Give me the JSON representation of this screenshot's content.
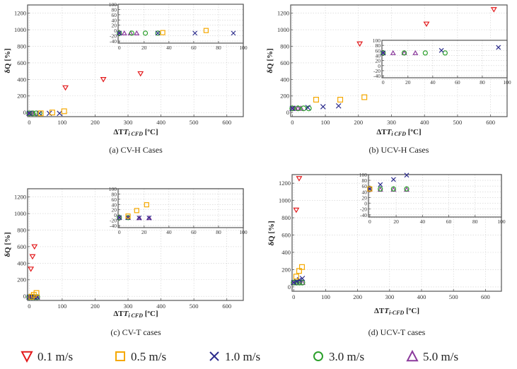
{
  "legend": [
    {
      "key": "v01",
      "label": "0.1 m/s",
      "marker": "triangle-down",
      "color": "#e31a1c"
    },
    {
      "key": "v05",
      "label": "0.5 m/s",
      "marker": "square",
      "color": "#f5a800"
    },
    {
      "key": "v10",
      "label": "1.0 m/s",
      "marker": "x",
      "color": "#2c2c8c"
    },
    {
      "key": "v30",
      "label": "3.0 m/s",
      "marker": "circle",
      "color": "#2ca02c"
    },
    {
      "key": "v50",
      "label": "5.0 m/s",
      "marker": "triangle-up",
      "color": "#8b3a9c"
    }
  ],
  "chart_data": [
    {
      "id": "a",
      "type": "scatter",
      "caption": "(a) CV-H Cases",
      "xlabel": "ΔT",
      "xlabel_sub": "i CFD",
      "xlabel_unit": " [ºC]",
      "ylabel": "δQ [%]",
      "xlim": [
        -5,
        650
      ],
      "ylim": [
        -50,
        1300
      ],
      "xticks": [
        0,
        100,
        200,
        300,
        400,
        500,
        600
      ],
      "yticks": [
        0,
        200,
        400,
        600,
        800,
        1000,
        1200
      ],
      "grid": true,
      "series": [
        {
          "key": "v01",
          "points": [
            [
              110,
              300
            ],
            [
              225,
              400
            ],
            [
              338,
              470
            ]
          ]
        },
        {
          "key": "v05",
          "points": [
            [
              35,
              -10
            ],
            [
              70,
              0
            ],
            [
              106,
              15
            ]
          ]
        },
        {
          "key": "v10",
          "points": [
            [
              0,
              -10
            ],
            [
              31,
              -10
            ],
            [
              61,
              -10
            ],
            [
              92,
              -10
            ]
          ]
        },
        {
          "key": "v30",
          "points": [
            [
              0,
              -10
            ],
            [
              10,
              -10
            ],
            [
              21,
              -10
            ],
            [
              31,
              -10
            ]
          ]
        },
        {
          "key": "v50",
          "points": [
            [
              0,
              -10
            ],
            [
              4,
              -10
            ],
            [
              9,
              -10
            ],
            [
              14,
              -10
            ]
          ]
        }
      ],
      "inset": {
        "xlim": [
          -1,
          100
        ],
        "ylim": [
          -48,
          100
        ],
        "xticks": [
          0,
          20,
          40,
          60,
          80,
          100
        ],
        "yticks": [
          -40,
          -20,
          0,
          20,
          40,
          60,
          80,
          100
        ],
        "series": [
          {
            "key": "v05",
            "points": [
              [
                35,
                -8
              ],
              [
                70,
                0
              ]
            ]
          },
          {
            "key": "v10",
            "points": [
              [
                0,
                -10
              ],
              [
                31,
                -10
              ],
              [
                61,
                -10
              ],
              [
                92,
                -10
              ]
            ]
          },
          {
            "key": "v30",
            "points": [
              [
                0,
                -10
              ],
              [
                10,
                -10
              ],
              [
                21,
                -10
              ],
              [
                31,
                -10
              ]
            ]
          },
          {
            "key": "v50",
            "points": [
              [
                0,
                -10
              ],
              [
                4,
                -10
              ],
              [
                9,
                -10
              ],
              [
                14,
                -10
              ]
            ]
          }
        ]
      }
    },
    {
      "id": "b",
      "type": "scatter",
      "caption": "(b) UCV-H Cases",
      "xlabel": "ΔT",
      "xlabel_sub": "i CFD",
      "xlabel_unit": " [ºC]",
      "ylabel": "δQ [%]",
      "xlim": [
        -5,
        650
      ],
      "ylim": [
        -50,
        1300
      ],
      "xticks": [
        0,
        100,
        200,
        300,
        400,
        500,
        600
      ],
      "yticks": [
        0,
        200,
        400,
        600,
        800,
        1000,
        1200
      ],
      "grid": true,
      "series": [
        {
          "key": "v01",
          "points": [
            [
              204,
              830
            ],
            [
              406,
              1070
            ],
            [
              610,
              1245
            ]
          ]
        },
        {
          "key": "v05",
          "points": [
            [
              72,
              155
            ],
            [
              145,
              155
            ],
            [
              218,
              185
            ]
          ]
        },
        {
          "key": "v10",
          "points": [
            [
              0,
              50
            ],
            [
              47,
              60
            ],
            [
              93,
              70
            ],
            [
              140,
              80
            ]
          ]
        },
        {
          "key": "v30",
          "points": [
            [
              0,
              50
            ],
            [
              17,
              50
            ],
            [
              34,
              50
            ],
            [
              50,
              50
            ]
          ]
        },
        {
          "key": "v50",
          "points": [
            [
              0,
              50
            ],
            [
              8,
              50
            ],
            [
              17,
              50
            ],
            [
              26,
              50
            ]
          ]
        }
      ],
      "inset": {
        "xlim": [
          -1,
          100
        ],
        "ylim": [
          -48,
          100
        ],
        "xticks": [
          0,
          20,
          40,
          60,
          80,
          100
        ],
        "yticks": [
          -40,
          -20,
          0,
          20,
          40,
          60,
          80,
          100
        ],
        "series": [
          {
            "key": "v10",
            "points": [
              [
                0,
                50
              ],
              [
                47,
                60
              ],
              [
                93,
                72
              ]
            ]
          },
          {
            "key": "v30",
            "points": [
              [
                0,
                50
              ],
              [
                17,
                50
              ],
              [
                34,
                50
              ],
              [
                50,
                50
              ]
            ]
          },
          {
            "key": "v50",
            "points": [
              [
                0,
                50
              ],
              [
                8,
                50
              ],
              [
                17,
                50
              ],
              [
                26,
                50
              ]
            ]
          }
        ]
      }
    },
    {
      "id": "c",
      "type": "scatter",
      "caption": "(c) CV-T cases",
      "xlabel": "ΔT",
      "xlabel_sub": "i CFD",
      "xlabel_unit": " [ºC]",
      "ylabel": "δQ [%]",
      "xlim": [
        -5,
        650
      ],
      "ylim": [
        -50,
        1300
      ],
      "xticks": [
        0,
        100,
        200,
        300,
        400,
        500,
        600
      ],
      "yticks": [
        0,
        200,
        400,
        600,
        800,
        1000,
        1200
      ],
      "grid": true,
      "series": [
        {
          "key": "v01",
          "points": [
            [
              5,
              330
            ],
            [
              10,
              480
            ],
            [
              16,
              600
            ]
          ]
        },
        {
          "key": "v05",
          "points": [
            [
              7,
              -5
            ],
            [
              14,
              18
            ],
            [
              22,
              40
            ]
          ]
        },
        {
          "key": "v10",
          "points": [
            [
              0,
              -10
            ],
            [
              8,
              -10
            ],
            [
              16,
              -10
            ],
            [
              24,
              -10
            ]
          ]
        },
        {
          "key": "v30",
          "points": [
            [
              0,
              -10
            ],
            [
              8,
              -10
            ],
            [
              16,
              -10
            ],
            [
              24,
              -10
            ]
          ]
        },
        {
          "key": "v50",
          "points": [
            [
              0,
              -10
            ],
            [
              8,
              -10
            ],
            [
              16,
              -10
            ],
            [
              24,
              -10
            ]
          ]
        }
      ],
      "inset": {
        "xlim": [
          -1,
          100
        ],
        "ylim": [
          -48,
          100
        ],
        "xticks": [
          0,
          20,
          40,
          60,
          80,
          100
        ],
        "yticks": [
          -40,
          -20,
          0,
          20,
          40,
          60,
          80,
          100
        ],
        "series": [
          {
            "key": "v05",
            "points": [
              [
                7,
                -4
              ],
              [
                14,
                17
              ],
              [
                22,
                39
              ]
            ]
          },
          {
            "key": "v10",
            "points": [
              [
                0,
                -10
              ],
              [
                7,
                -10
              ],
              [
                16,
                -11
              ],
              [
                24,
                -11
              ]
            ]
          },
          {
            "key": "v30",
            "points": [
              [
                0,
                -10
              ],
              [
                7,
                -10
              ]
            ]
          },
          {
            "key": "v50",
            "points": [
              [
                0,
                -10
              ],
              [
                7,
                -10
              ],
              [
                16,
                -11
              ],
              [
                24,
                -11
              ]
            ]
          }
        ]
      }
    },
    {
      "id": "d",
      "type": "scatter",
      "caption": "(d) UCV-T cases",
      "xlabel": "ΔT",
      "xlabel_sub": "i-CFD",
      "xlabel_unit": " [ºC]",
      "ylabel": "δQ [%]",
      "xlim": [
        -5,
        650
      ],
      "ylim": [
        -50,
        1300
      ],
      "xticks": [
        0,
        100,
        200,
        300,
        400,
        500,
        600
      ],
      "yticks": [
        0,
        200,
        400,
        600,
        800,
        1000,
        1200
      ],
      "grid": true,
      "series": [
        {
          "key": "v01",
          "points": [
            [
              8,
              890
            ],
            [
              17,
              1255
            ]
          ]
        },
        {
          "key": "v05",
          "points": [
            [
              8,
              120
            ],
            [
              17,
              185
            ],
            [
              26,
              230
            ]
          ]
        },
        {
          "key": "v10",
          "points": [
            [
              0,
              50
            ],
            [
              9,
              65
            ],
            [
              18,
              83
            ],
            [
              27,
              98
            ]
          ]
        },
        {
          "key": "v30",
          "points": [
            [
              0,
              50
            ],
            [
              9,
              50
            ],
            [
              18,
              50
            ],
            [
              27,
              50
            ]
          ]
        },
        {
          "key": "v50",
          "points": [
            [
              0,
              50
            ],
            [
              9,
              50
            ],
            [
              18,
              50
            ],
            [
              27,
              50
            ]
          ]
        }
      ],
      "inset": {
        "xlim": [
          -1,
          100
        ],
        "ylim": [
          -48,
          100
        ],
        "xticks": [
          0,
          20,
          40,
          60,
          80,
          100
        ],
        "yticks": [
          -40,
          -20,
          0,
          20,
          40,
          60,
          80,
          100
        ],
        "series": [
          {
            "key": "v05",
            "points": [
              [
                0,
                50
              ]
            ]
          },
          {
            "key": "v10",
            "points": [
              [
                0,
                50
              ],
              [
                8,
                65
              ],
              [
                18,
                83
              ],
              [
                28,
                98
              ]
            ]
          },
          {
            "key": "v30",
            "points": [
              [
                0,
                50
              ],
              [
                8,
                50
              ],
              [
                18,
                50
              ],
              [
                28,
                50
              ]
            ]
          },
          {
            "key": "v50",
            "points": [
              [
                0,
                48
              ],
              [
                8,
                48
              ],
              [
                18,
                48
              ],
              [
                28,
                48
              ]
            ]
          }
        ]
      }
    }
  ]
}
